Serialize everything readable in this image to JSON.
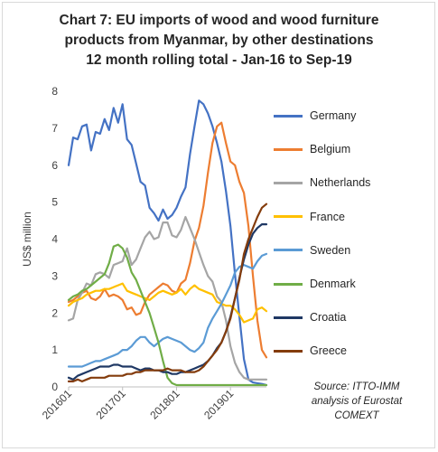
{
  "chart_data": {
    "type": "line",
    "title_lines": [
      "Chart 7: EU imports of wood and wood furniture",
      "products from Myanmar, by other destinations",
      "12 month rolling total  - Jan-16 to Sep-19"
    ],
    "ylabel": "US$ million",
    "xlabel": "",
    "ylim": [
      0,
      8
    ],
    "yticks": [
      "0",
      "1",
      "2",
      "3",
      "4",
      "5",
      "6",
      "7",
      "8"
    ],
    "xticks": [
      "201601",
      "201701",
      "201801",
      "201901"
    ],
    "x": [
      "201601",
      "201602",
      "201603",
      "201604",
      "201605",
      "201606",
      "201607",
      "201608",
      "201609",
      "201610",
      "201611",
      "201612",
      "201701",
      "201702",
      "201703",
      "201704",
      "201705",
      "201706",
      "201707",
      "201708",
      "201709",
      "201710",
      "201711",
      "201712",
      "201801",
      "201802",
      "201803",
      "201804",
      "201805",
      "201806",
      "201807",
      "201808",
      "201809",
      "201810",
      "201811",
      "201812",
      "201901",
      "201902",
      "201903",
      "201904",
      "201905",
      "201906",
      "201907",
      "201908",
      "201909"
    ],
    "grid": false,
    "legend_position": "right",
    "series": [
      {
        "name": "Germany",
        "color": "#4472c4",
        "values": [
          6.0,
          6.75,
          6.7,
          7.05,
          7.1,
          6.4,
          6.9,
          6.85,
          7.25,
          6.95,
          7.55,
          7.15,
          7.65,
          6.7,
          6.55,
          6.05,
          5.55,
          5.45,
          4.85,
          4.7,
          4.5,
          4.8,
          4.55,
          4.65,
          4.85,
          5.15,
          5.4,
          6.3,
          7.05,
          7.75,
          7.65,
          7.4,
          7.05,
          6.6,
          6.1,
          5.3,
          4.35,
          3.05,
          1.9,
          0.75,
          0.2,
          0.12,
          0.1,
          0.08,
          0.05
        ]
      },
      {
        "name": "Belgium",
        "color": "#ed7d31",
        "values": [
          2.3,
          2.35,
          2.45,
          2.55,
          2.6,
          2.4,
          2.35,
          2.45,
          2.65,
          2.45,
          2.5,
          2.45,
          2.35,
          2.1,
          2.15,
          1.95,
          2.0,
          2.3,
          2.5,
          2.6,
          2.7,
          2.8,
          2.75,
          2.6,
          2.55,
          2.8,
          2.9,
          3.35,
          3.95,
          4.3,
          4.9,
          5.8,
          6.6,
          7.05,
          7.15,
          6.6,
          6.1,
          6.0,
          5.55,
          5.25,
          4.35,
          3.0,
          1.8,
          1.0,
          0.8
        ]
      },
      {
        "name": "Netherlands",
        "color": "#a5a5a5",
        "values": [
          1.8,
          1.85,
          2.35,
          2.55,
          2.8,
          2.75,
          3.05,
          3.1,
          3.05,
          2.95,
          3.3,
          3.35,
          3.4,
          3.75,
          3.3,
          3.45,
          3.75,
          4.05,
          4.2,
          4.0,
          4.05,
          4.45,
          4.45,
          4.1,
          4.05,
          4.25,
          4.6,
          4.3,
          4.0,
          3.65,
          3.3,
          3.0,
          2.85,
          2.45,
          2.3,
          1.8,
          1.1,
          0.65,
          0.4,
          0.25,
          0.2,
          0.2,
          0.2,
          0.2,
          0.2
        ]
      },
      {
        "name": "France",
        "color": "#ffc000",
        "values": [
          2.2,
          2.3,
          2.35,
          2.4,
          2.5,
          2.55,
          2.6,
          2.6,
          2.65,
          2.65,
          2.7,
          2.75,
          2.8,
          2.6,
          2.55,
          2.5,
          2.45,
          2.4,
          2.35,
          2.45,
          2.55,
          2.6,
          2.55,
          2.5,
          2.55,
          2.65,
          2.5,
          2.65,
          2.75,
          2.65,
          2.6,
          2.55,
          2.5,
          2.3,
          2.25,
          2.2,
          2.2,
          2.1,
          1.95,
          1.75,
          1.8,
          1.85,
          2.1,
          2.15,
          2.05
        ]
      },
      {
        "name": "Sweden",
        "color": "#5b9bd5",
        "values": [
          0.55,
          0.55,
          0.55,
          0.55,
          0.6,
          0.65,
          0.7,
          0.7,
          0.75,
          0.8,
          0.85,
          0.9,
          1.0,
          1.0,
          1.1,
          1.25,
          1.35,
          1.35,
          1.2,
          1.1,
          1.2,
          1.3,
          1.35,
          1.3,
          1.25,
          1.2,
          1.1,
          1.0,
          0.95,
          1.05,
          1.2,
          1.6,
          1.85,
          2.05,
          2.25,
          2.5,
          2.75,
          3.1,
          3.25,
          3.3,
          3.25,
          3.2,
          3.4,
          3.55,
          3.6
        ]
      },
      {
        "name": "Denmark",
        "color": "#70ad47",
        "values": [
          2.35,
          2.45,
          2.5,
          2.6,
          2.65,
          2.75,
          2.85,
          2.95,
          3.05,
          3.35,
          3.8,
          3.85,
          3.75,
          3.5,
          3.1,
          2.9,
          2.6,
          2.3,
          2.0,
          1.6,
          1.2,
          0.7,
          0.25,
          0.1,
          0.05,
          0.05,
          0.05,
          0.05,
          0.05,
          0.05,
          0.05,
          0.05,
          0.05,
          0.05,
          0.05,
          0.05,
          0.05,
          0.05,
          0.05,
          0.05,
          0.05,
          0.05,
          0.05,
          0.05,
          0.05
        ]
      },
      {
        "name": "Croatia",
        "color": "#1f3864",
        "values": [
          0.25,
          0.2,
          0.3,
          0.35,
          0.4,
          0.45,
          0.5,
          0.55,
          0.55,
          0.55,
          0.6,
          0.6,
          0.55,
          0.55,
          0.55,
          0.5,
          0.45,
          0.5,
          0.5,
          0.45,
          0.45,
          0.4,
          0.4,
          0.35,
          0.35,
          0.4,
          0.4,
          0.45,
          0.5,
          0.55,
          0.6,
          0.7,
          0.85,
          1.05,
          1.2,
          1.5,
          1.9,
          2.4,
          2.95,
          3.45,
          3.85,
          4.15,
          4.3,
          4.4,
          4.4
        ]
      },
      {
        "name": "Greece",
        "color": "#843c0c",
        "values": [
          0.15,
          0.15,
          0.2,
          0.15,
          0.2,
          0.25,
          0.25,
          0.25,
          0.25,
          0.3,
          0.3,
          0.3,
          0.3,
          0.35,
          0.35,
          0.4,
          0.4,
          0.45,
          0.45,
          0.45,
          0.45,
          0.45,
          0.5,
          0.45,
          0.45,
          0.45,
          0.4,
          0.4,
          0.4,
          0.45,
          0.55,
          0.7,
          0.85,
          1.0,
          1.2,
          1.5,
          1.85,
          2.4,
          2.9,
          3.6,
          4.0,
          4.3,
          4.6,
          4.85,
          4.95
        ]
      }
    ]
  },
  "source_lines": [
    "Source: ITTO-IMM",
    "analysis of Eurostat",
    "COMEXT"
  ]
}
